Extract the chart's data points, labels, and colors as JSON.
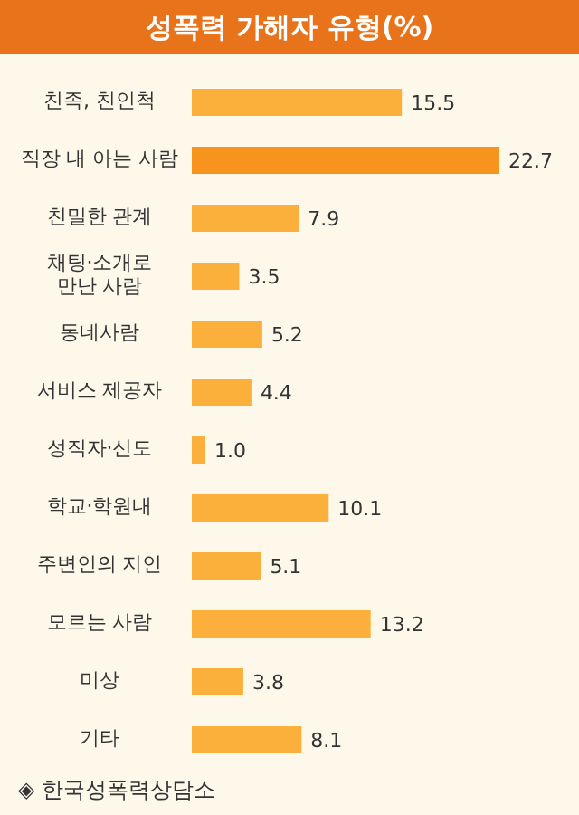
{
  "chart_data": {
    "type": "bar",
    "orientation": "horizontal",
    "title": "성폭력 가해자 유형(%)",
    "categories": [
      "친족, 친인척",
      "직장 내 아는 사람",
      "친밀한 관계",
      "채팅·소개로\n만난 사람",
      "동네사람",
      "서비스 제공자",
      "성직자·신도",
      "학교·학원내",
      "주변인의 지인",
      "모르는 사람",
      "미상",
      "기타"
    ],
    "values": [
      15.5,
      22.7,
      7.9,
      3.5,
      5.2,
      4.4,
      1.0,
      10.1,
      5.1,
      13.2,
      3.8,
      8.1
    ],
    "colors": [
      "#fbb03b",
      "#f7941d",
      "#fbb03b",
      "#fbb03b",
      "#fbb03b",
      "#fbb03b",
      "#fbb03b",
      "#fbb03b",
      "#fbb03b",
      "#fbb03b",
      "#fbb03b",
      "#fbb03b"
    ],
    "value_labels": [
      "15.5",
      "22.7",
      "7.9",
      "3.5",
      "5.2",
      "4.4",
      "1.0",
      "10.1",
      "5.1",
      "13.2",
      "3.8",
      "8.1"
    ],
    "annotations": [
      "◈ 한국성폭력상담소"
    ]
  }
}
